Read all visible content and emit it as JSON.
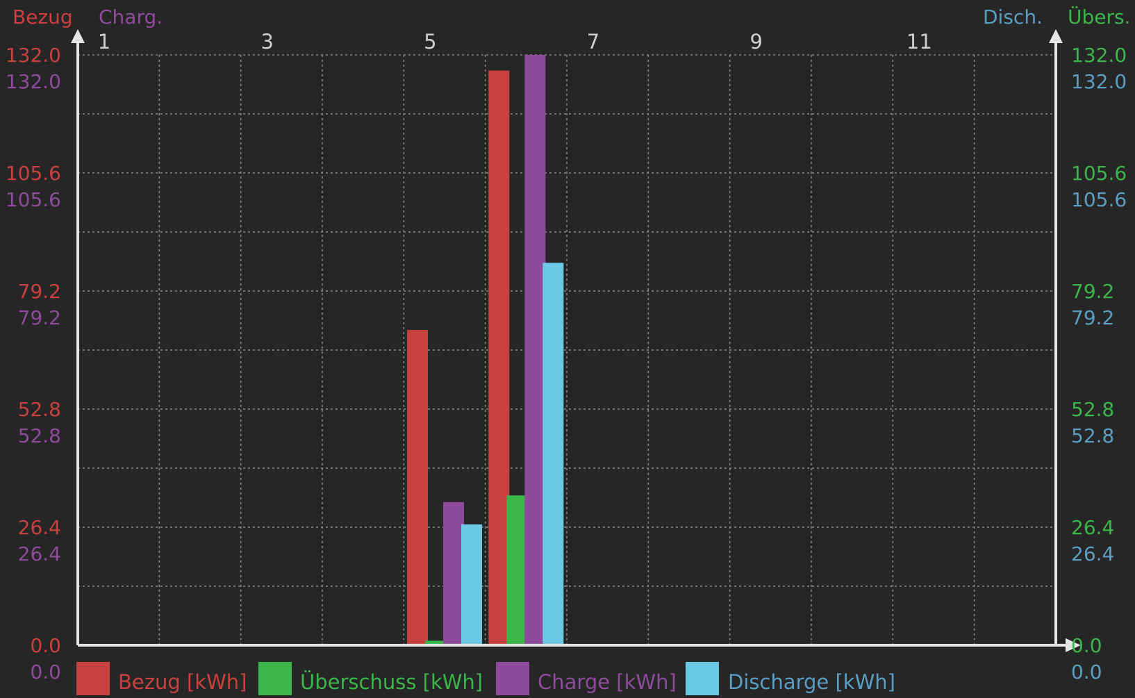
{
  "colors": {
    "background": "#262626",
    "axis": "#e6e6e6",
    "grid": "#8a8a8a",
    "bezug": "#c8413f",
    "ueberschuss": "#3cb54a",
    "charge": "#8e4b9c",
    "discharge": "#6cc9e6",
    "disch_label": "#5a9ec2",
    "tick": "#cfcfcf"
  },
  "chart_data": {
    "type": "bar",
    "categories": [
      "1",
      "2",
      "3",
      "4",
      "5",
      "6",
      "7",
      "8",
      "9",
      "10",
      "11",
      "12"
    ],
    "x_tick_labels": [
      "1",
      "3",
      "5",
      "7",
      "9",
      "11"
    ],
    "y_ticks": [
      "0.0",
      "26.4",
      "52.8",
      "79.2",
      "105.6",
      "132.0"
    ],
    "ylim": [
      0,
      132
    ],
    "grid": true,
    "axis_titles": {
      "bezug": "Bezug",
      "charge": "Charg.",
      "discharge": "Disch.",
      "ueberschuss": "Übers."
    },
    "series": [
      {
        "key": "bezug",
        "name": "Bezug [kWh]",
        "values": [
          0,
          0,
          0,
          0,
          70.5,
          128.5,
          0,
          0,
          0,
          0,
          0,
          0
        ]
      },
      {
        "key": "ueberschuss",
        "name": "Überschuss [kWh]",
        "values": [
          0,
          0,
          0,
          0,
          1.0,
          33.5,
          0,
          0,
          0,
          0,
          0,
          0
        ]
      },
      {
        "key": "charge",
        "name": "Charge [kWh]",
        "values": [
          0,
          0,
          0,
          0,
          32.0,
          132.0,
          0,
          0,
          0,
          0,
          0,
          0
        ]
      },
      {
        "key": "discharge",
        "name": "Discharge [kWh]",
        "values": [
          0,
          0,
          0,
          0,
          27.0,
          85.5,
          0,
          0,
          0,
          0,
          0,
          0
        ]
      }
    ],
    "legend_position": "bottom"
  }
}
